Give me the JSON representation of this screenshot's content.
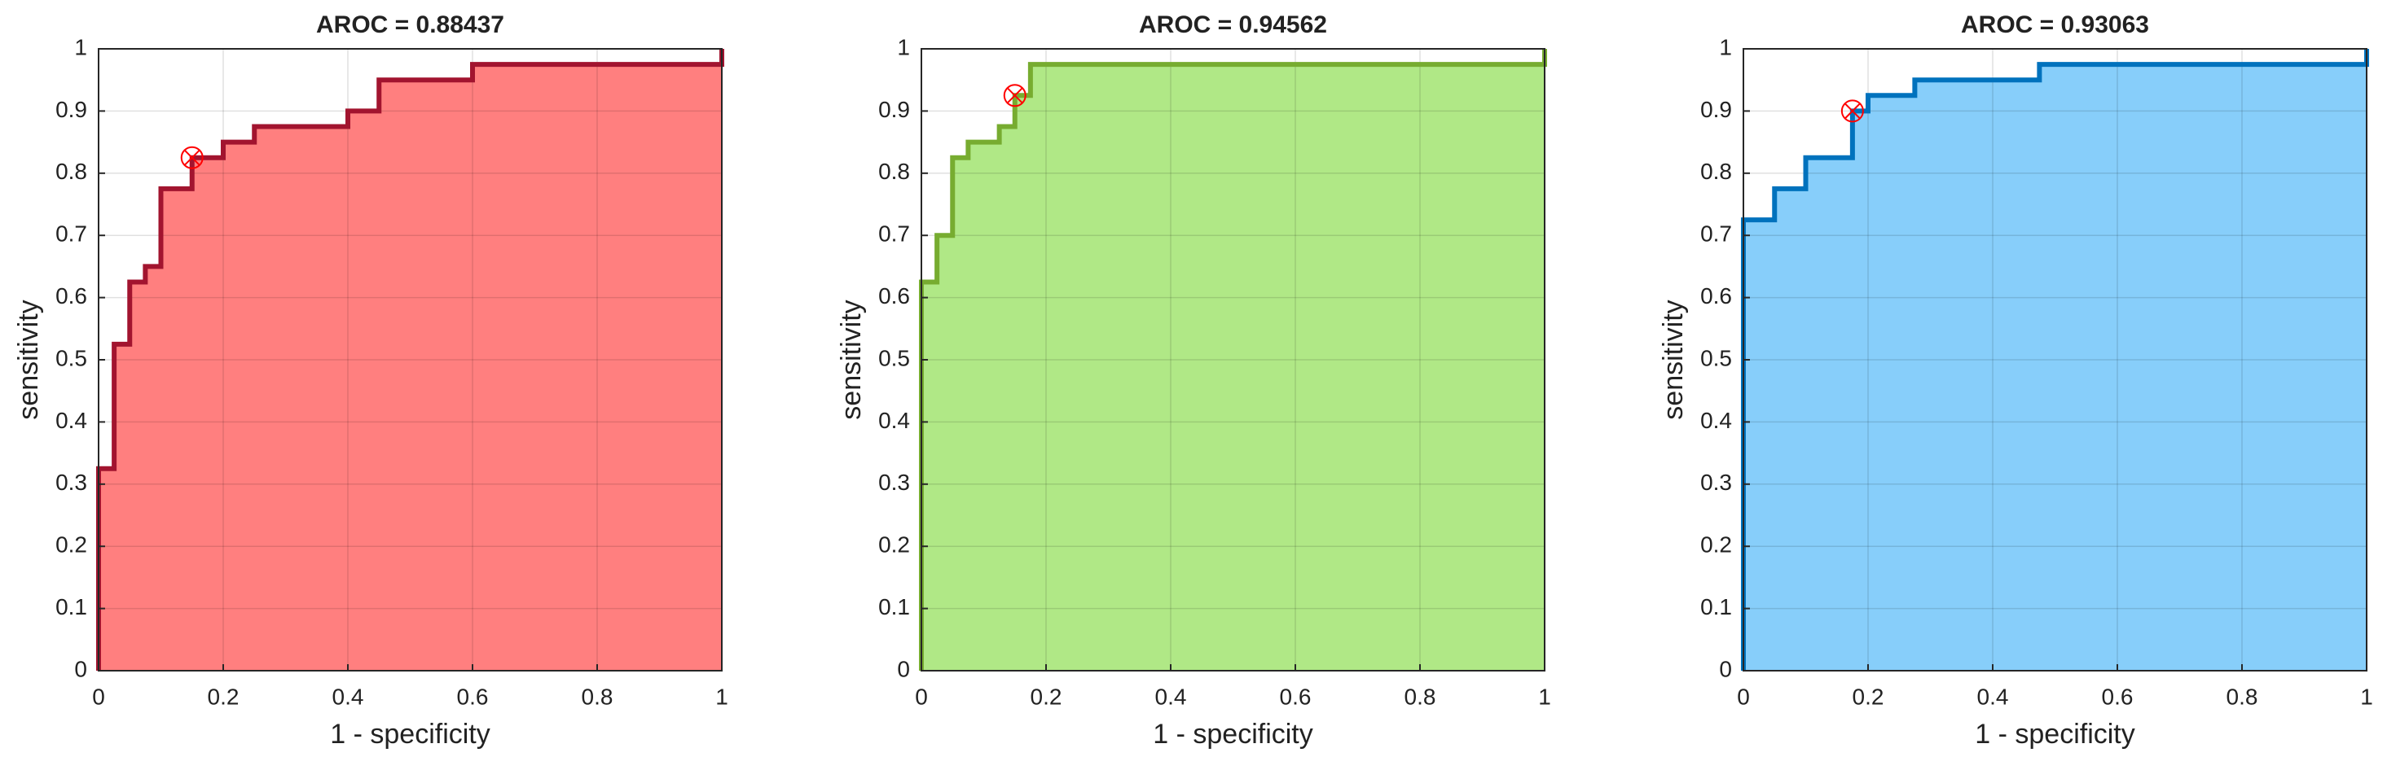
{
  "chart_data": [
    {
      "type": "line",
      "title": "AROC = 0.88437",
      "xlabel": "1 - specificity",
      "ylabel": "sensitivity",
      "x": [
        0,
        0,
        0.025,
        0.025,
        0.05,
        0.05,
        0.075,
        0.075,
        0.1,
        0.1,
        0.15,
        0.15,
        0.2,
        0.2,
        0.25,
        0.25,
        0.4,
        0.4,
        0.45,
        0.45,
        0.6,
        0.6,
        1,
        1
      ],
      "series": [
        {
          "color": "#a2142f",
          "fill": "#ff7f7f",
          "values": [
            0,
            0.325,
            0.325,
            0.525,
            0.525,
            0.625,
            0.625,
            0.65,
            0.65,
            0.775,
            0.775,
            0.825,
            0.825,
            0.85,
            0.85,
            0.875,
            0.875,
            0.9,
            0.9,
            0.95,
            0.95,
            0.975,
            0.975,
            1
          ]
        }
      ],
      "optimal_point": {
        "x": 0.15,
        "y": 0.825,
        "color": "#ff0000"
      },
      "xlim": [
        0,
        1
      ],
      "ylim": [
        0,
        1
      ],
      "xticks": [
        0,
        0.2,
        0.4,
        0.6,
        0.8,
        1
      ],
      "yticks": [
        0,
        0.1,
        0.2,
        0.3,
        0.4,
        0.5,
        0.6,
        0.7,
        0.8,
        0.9,
        1
      ],
      "grid": true
    },
    {
      "type": "line",
      "title": "AROC = 0.94562",
      "xlabel": "1 - specificity",
      "ylabel": "sensitivity",
      "x": [
        0,
        0,
        0.025,
        0.025,
        0.05,
        0.05,
        0.075,
        0.075,
        0.125,
        0.125,
        0.15,
        0.15,
        0.175,
        0.175,
        1,
        1
      ],
      "series": [
        {
          "color": "#77ac30",
          "fill": "#b0e886",
          "values": [
            0,
            0.625,
            0.625,
            0.7,
            0.7,
            0.825,
            0.825,
            0.85,
            0.85,
            0.875,
            0.875,
            0.925,
            0.925,
            0.975,
            0.975,
            1
          ]
        }
      ],
      "optimal_point": {
        "x": 0.15,
        "y": 0.925,
        "color": "#ff0000"
      },
      "xlim": [
        0,
        1
      ],
      "ylim": [
        0,
        1
      ],
      "xticks": [
        0,
        0.2,
        0.4,
        0.6,
        0.8,
        1
      ],
      "yticks": [
        0,
        0.1,
        0.2,
        0.3,
        0.4,
        0.5,
        0.6,
        0.7,
        0.8,
        0.9,
        1
      ],
      "grid": true
    },
    {
      "type": "line",
      "title": "AROC = 0.93063",
      "xlabel": "1 - specificity",
      "ylabel": "sensitivity",
      "x": [
        0,
        0,
        0.05,
        0.05,
        0.1,
        0.1,
        0.175,
        0.175,
        0.2,
        0.2,
        0.275,
        0.275,
        0.475,
        0.475,
        1,
        1
      ],
      "series": [
        {
          "color": "#0072bd",
          "fill": "#87cefa",
          "values": [
            0,
            0.725,
            0.725,
            0.775,
            0.775,
            0.825,
            0.825,
            0.9,
            0.9,
            0.925,
            0.925,
            0.95,
            0.95,
            0.975,
            0.975,
            1
          ]
        }
      ],
      "optimal_point": {
        "x": 0.175,
        "y": 0.9,
        "color": "#ff0000"
      },
      "xlim": [
        0,
        1
      ],
      "ylim": [
        0,
        1
      ],
      "xticks": [
        0,
        0.2,
        0.4,
        0.6,
        0.8,
        1
      ],
      "yticks": [
        0,
        0.1,
        0.2,
        0.3,
        0.4,
        0.5,
        0.6,
        0.7,
        0.8,
        0.9,
        1
      ],
      "grid": true
    }
  ]
}
